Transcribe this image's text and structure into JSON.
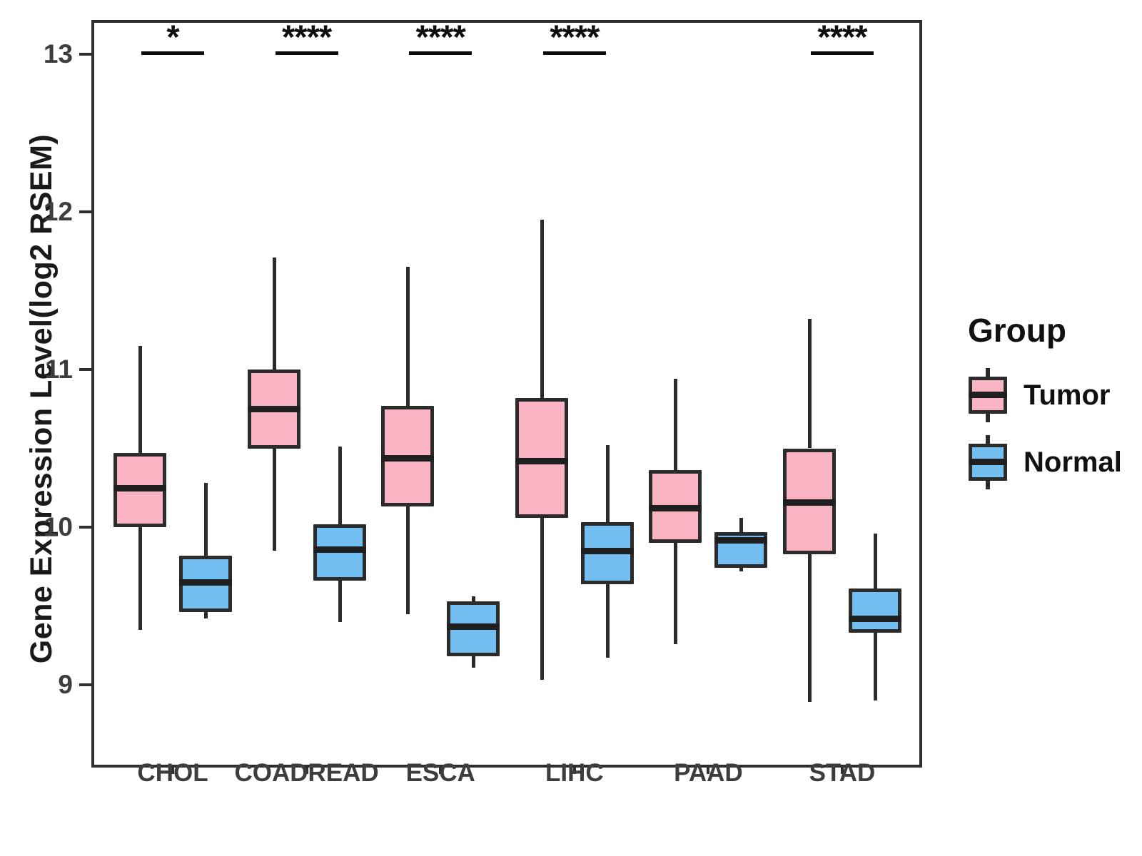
{
  "chart_data": {
    "type": "boxplot",
    "title": "",
    "xlabel": "",
    "ylabel": "Gene Expression Level(log2 RSEM)",
    "y_ticks": [
      9,
      10,
      11,
      12,
      13
    ],
    "ylim": [
      8.5,
      13.2
    ],
    "grid": false,
    "legend_position": "right",
    "categories": [
      "CHOL",
      "COADREAD",
      "ESCA",
      "LIHC",
      "PAAD",
      "STAD"
    ],
    "significance": [
      "*",
      "****",
      "****",
      "****",
      "",
      "****"
    ],
    "series": [
      {
        "name": "Tumor",
        "color": "#F9B3C2",
        "boxes": [
          {
            "low": 9.35,
            "q1": 10.0,
            "median": 10.25,
            "q3": 10.47,
            "high": 11.15
          },
          {
            "low": 9.85,
            "q1": 10.5,
            "median": 10.75,
            "q3": 11.0,
            "high": 11.71
          },
          {
            "low": 9.45,
            "q1": 10.13,
            "median": 10.44,
            "q3": 10.77,
            "high": 11.65
          },
          {
            "low": 9.03,
            "q1": 10.06,
            "median": 10.42,
            "q3": 10.82,
            "high": 11.95
          },
          {
            "low": 9.26,
            "q1": 9.9,
            "median": 10.12,
            "q3": 10.36,
            "high": 10.94
          },
          {
            "low": 8.89,
            "q1": 9.83,
            "median": 10.16,
            "q3": 10.5,
            "high": 11.32
          }
        ]
      },
      {
        "name": "Normal",
        "color": "#74BFF2",
        "boxes": [
          {
            "low": 9.42,
            "q1": 9.46,
            "median": 9.65,
            "q3": 9.82,
            "high": 10.28
          },
          {
            "low": 9.4,
            "q1": 9.66,
            "median": 9.86,
            "q3": 10.02,
            "high": 10.51
          },
          {
            "low": 9.11,
            "q1": 9.18,
            "median": 9.37,
            "q3": 9.53,
            "high": 9.56
          },
          {
            "low": 9.17,
            "q1": 9.64,
            "median": 9.85,
            "q3": 10.03,
            "high": 10.52
          },
          {
            "low": 9.72,
            "q1": 9.74,
            "median": 9.92,
            "q3": 9.97,
            "high": 10.06
          },
          {
            "low": 8.9,
            "q1": 9.33,
            "median": 9.42,
            "q3": 9.61,
            "high": 9.96
          }
        ]
      }
    ]
  },
  "legend": {
    "title": "Group",
    "items": [
      {
        "label": "Tumor"
      },
      {
        "label": "Normal"
      }
    ]
  }
}
